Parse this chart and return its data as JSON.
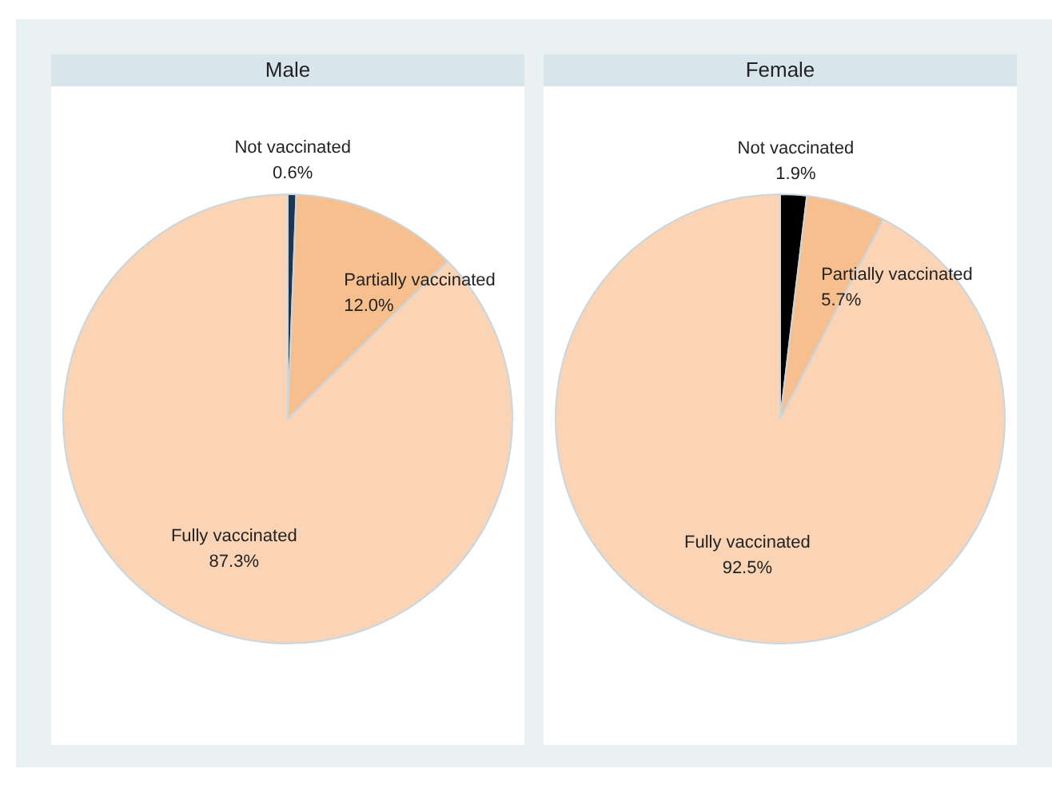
{
  "chart_data": [
    {
      "type": "pie",
      "title": "Male",
      "categories": [
        "Not vaccinated",
        "Partially vaccinated",
        "Fully vaccinated"
      ],
      "values": [
        0.6,
        12.0,
        87.3
      ],
      "value_labels": [
        "0.6%",
        "12.0%",
        "87.3%"
      ],
      "colors": [
        "#1c3553",
        "#f8bf8e",
        "#fad4b4"
      ],
      "legend": false
    },
    {
      "type": "pie",
      "title": "Female",
      "categories": [
        "Not vaccinated",
        "Partially vaccinated",
        "Fully vaccinated"
      ],
      "values": [
        1.9,
        5.7,
        92.5
      ],
      "value_labels": [
        "1.9%",
        "5.7%",
        "92.5%"
      ],
      "colors": [
        "#000000",
        "#f8bf8e",
        "#fad4b4"
      ],
      "legend": false
    }
  ]
}
